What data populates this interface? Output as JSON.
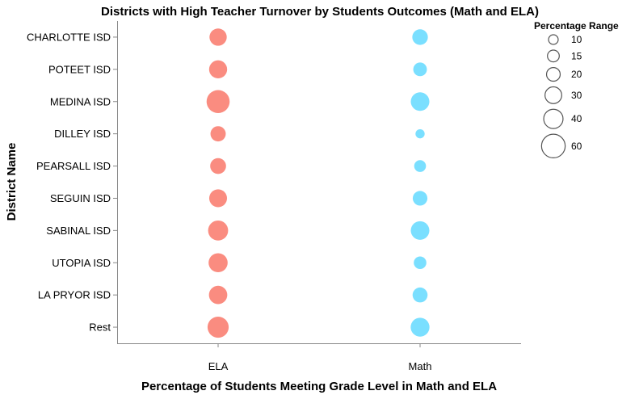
{
  "chart_data": {
    "type": "scatter",
    "title": "Districts with High Teacher Turnover by Students Outcomes (Math and ELA)",
    "xlabel": "Percentage of Students Meeting Grade Level in Math and ELA",
    "ylabel": "District Name",
    "categories_x": [
      "ELA",
      "Math"
    ],
    "categories_y": [
      "CHARLOTTE ISD",
      "POTEET ISD",
      "MEDINA ISD",
      "DILLEY ISD",
      "PEARSALL ISD",
      "SEGUIN ISD",
      "SABINAL ISD",
      "UTOPIA ISD",
      "LA PRYOR ISD",
      "Rest"
    ],
    "size_legend": {
      "title": "Percentage Range",
      "values": [
        10,
        15,
        20,
        30,
        40,
        60
      ],
      "labels": [
        "10",
        "15",
        "20",
        "30",
        "40",
        "60"
      ]
    },
    "series": [
      {
        "category": "ELA",
        "color": "#fa8072",
        "values": [
          32,
          35,
          57,
          25,
          27,
          34,
          43,
          39,
          36,
          48
        ]
      },
      {
        "category": "Math",
        "color": "#6bdcff",
        "values": [
          26,
          20,
          37,
          9,
          15,
          23,
          37,
          17,
          24,
          38
        ]
      }
    ],
    "grid": false,
    "legend_position": "right"
  }
}
